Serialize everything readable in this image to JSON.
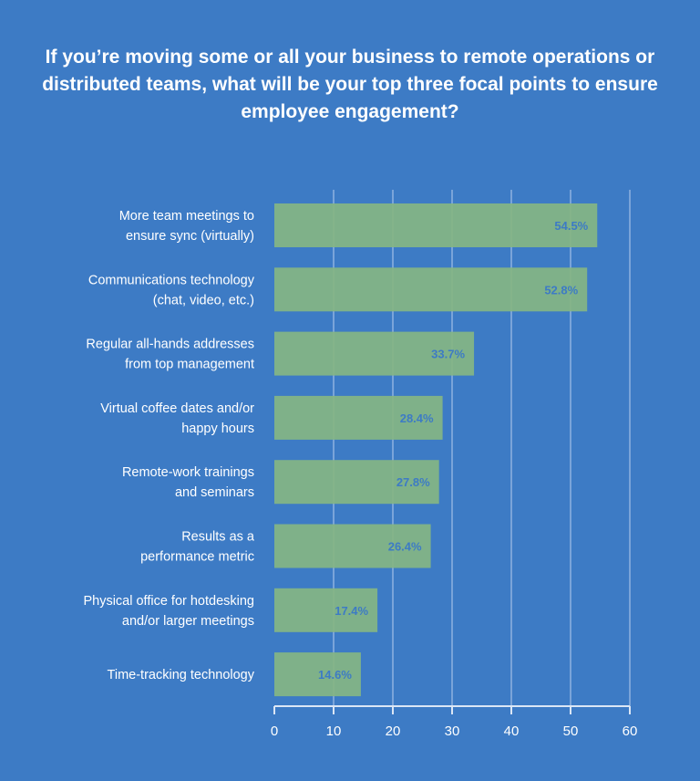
{
  "chart_data": {
    "type": "bar",
    "orientation": "horizontal",
    "title": "If you’re moving some or all your business to remote operations or distributed teams, what will be your top three focal points to ensure employee engagement?",
    "categories": [
      [
        "More team meetings to",
        "ensure sync (virtually)"
      ],
      [
        "Communications technology",
        "(chat, video, etc.)"
      ],
      [
        "Regular all-hands addresses",
        "from top management"
      ],
      [
        "Virtual coffee dates and/or",
        "happy hours"
      ],
      [
        "Remote-work trainings",
        "and seminars"
      ],
      [
        "Results as a",
        "performance metric"
      ],
      [
        "Physical office for hotdesking",
        "and/or larger meetings"
      ],
      [
        "Time-tracking technology"
      ]
    ],
    "values": [
      54.5,
      52.8,
      33.7,
      28.4,
      27.8,
      26.4,
      17.4,
      14.6
    ],
    "data_labels": [
      "54.5%",
      "52.8%",
      "33.7%",
      "28.4%",
      "27.8%",
      "26.4%",
      "17.4%",
      "14.6%"
    ],
    "xlim": [
      0,
      60
    ],
    "xticks": [
      "0",
      "10",
      "20",
      "30",
      "40",
      "50",
      "60"
    ],
    "grid": true,
    "xlabel": "",
    "ylabel": "",
    "colors": {
      "background": "#3d7bc5",
      "bar": "#84b584",
      "label": "#3d7bc5",
      "grid": "#8fb2e0"
    }
  }
}
